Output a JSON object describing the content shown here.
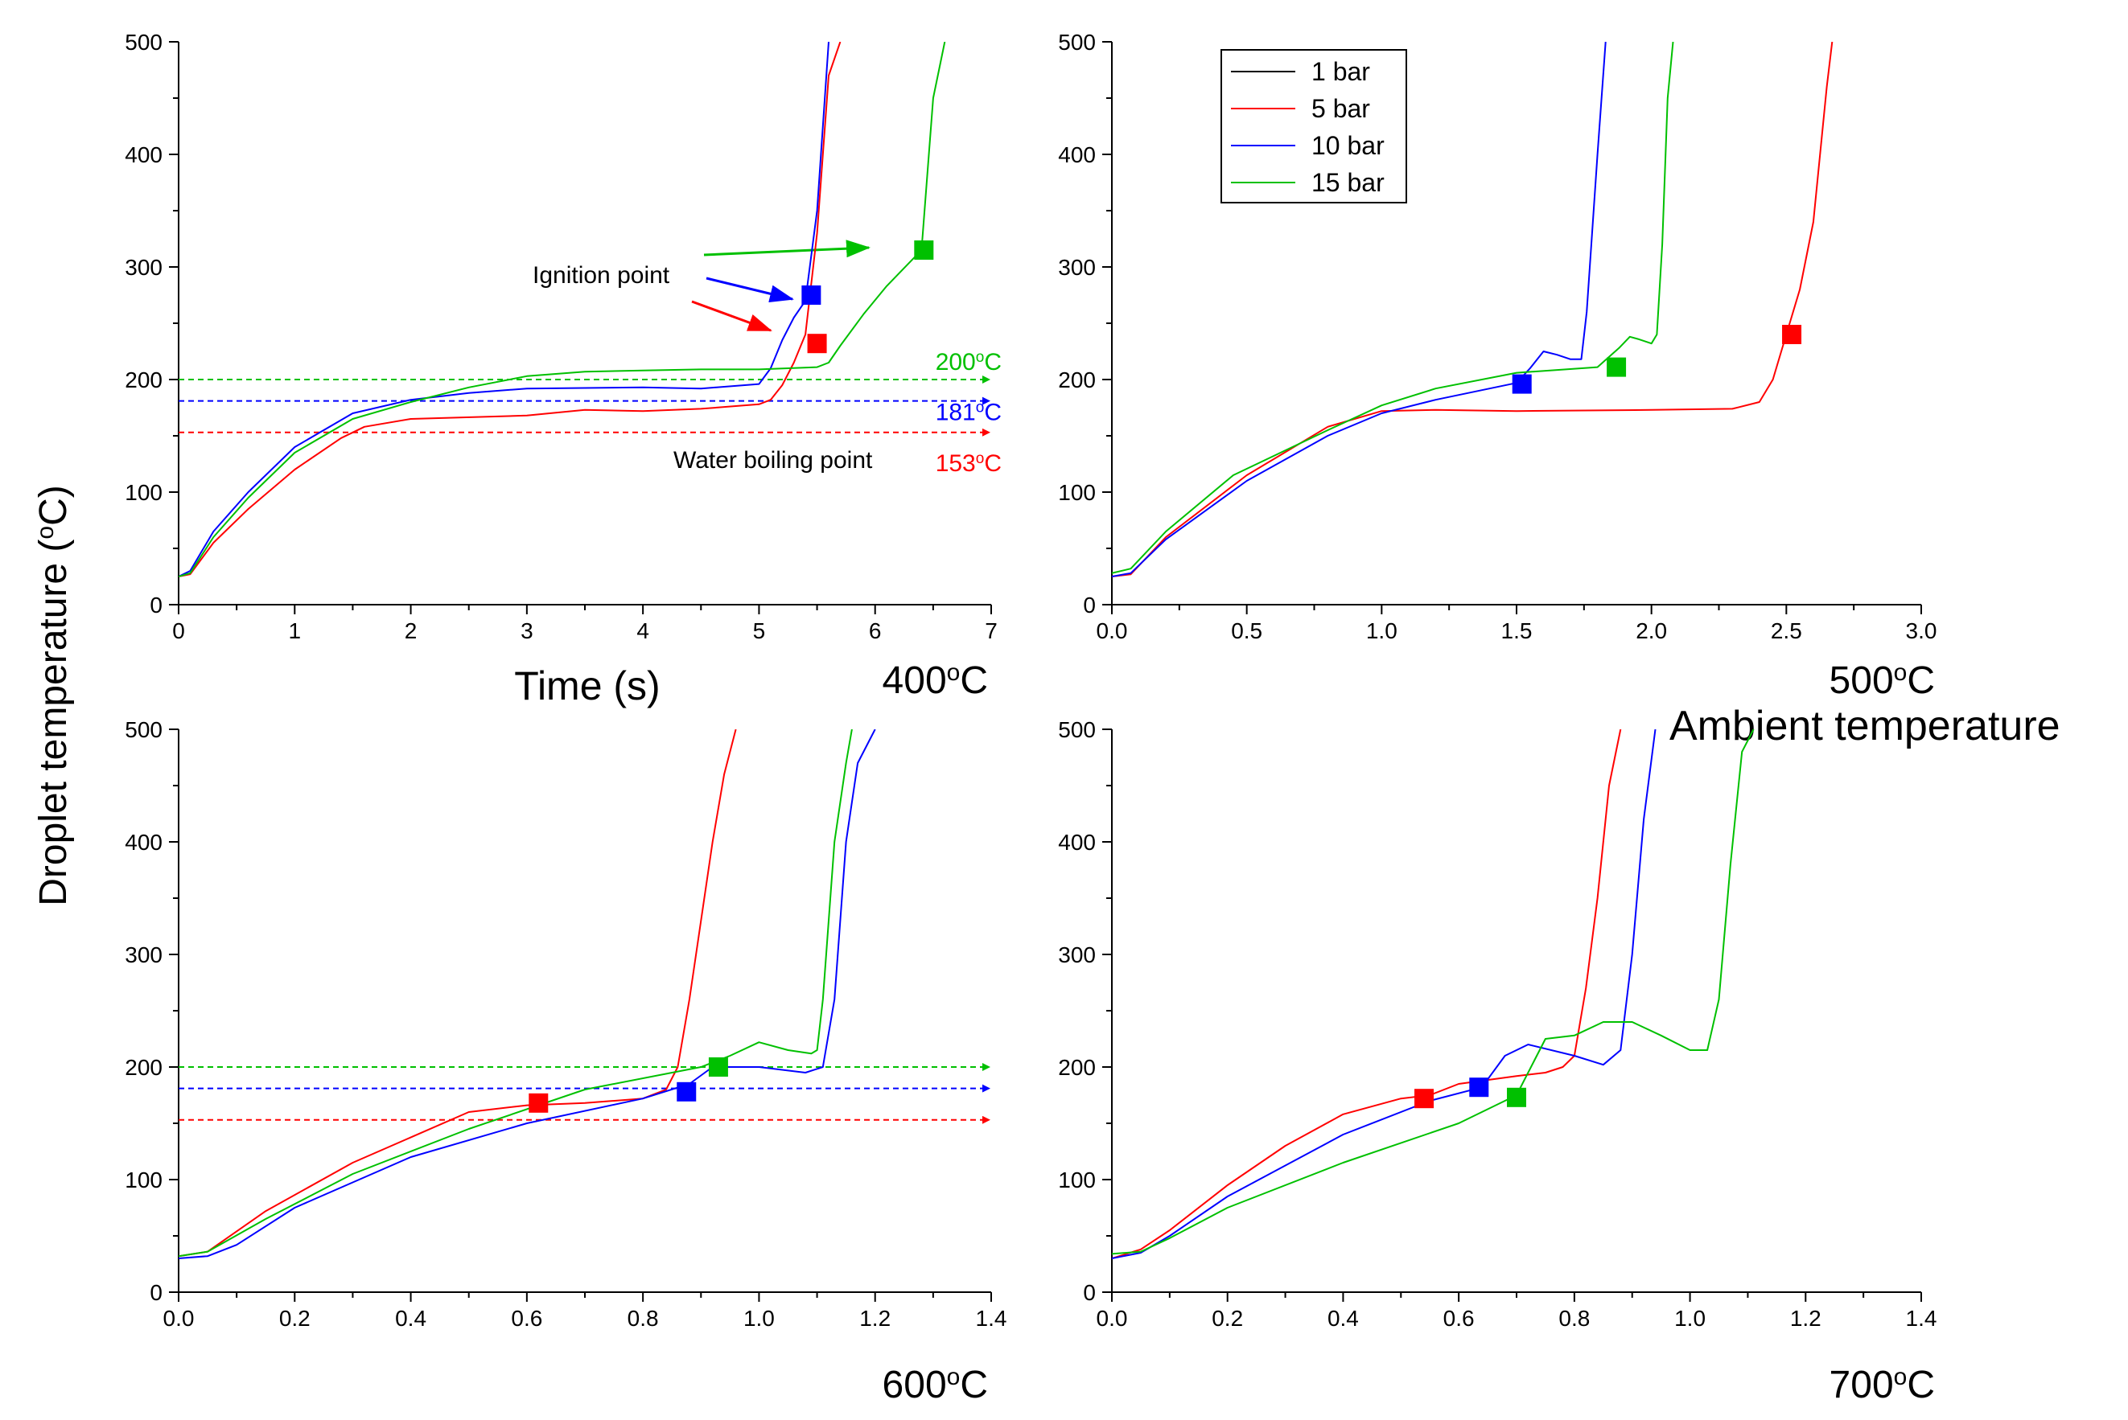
{
  "figure": {
    "ylabel": "Droplet temperature (°C)",
    "ylabel_main": "Droplet temperature (",
    "ylabel_sup": "o",
    "ylabel_tail": "C)",
    "xlabel": "Time (s)",
    "ambient_label": "Ambient temperature",
    "legend": [
      {
        "label": "1 bar",
        "color": "#000000"
      },
      {
        "label": "5 bar",
        "color": "#ff0000"
      },
      {
        "label": "10 bar",
        "color": "#0000ff"
      },
      {
        "label": "15 bar",
        "color": "#00c000"
      }
    ],
    "annotations": {
      "ignition": "Ignition point",
      "boiling": "Water boiling point"
    }
  },
  "chart_data": [
    {
      "type": "line",
      "panel_label": "400°C",
      "panel_num": "400",
      "xlim": [
        0,
        7
      ],
      "ylim": [
        0,
        500
      ],
      "xticks": [
        "0",
        "1",
        "2",
        "3",
        "4",
        "5",
        "6",
        "7"
      ],
      "yticks": [
        "0",
        "100",
        "200",
        "300",
        "400",
        "500"
      ],
      "series": [
        {
          "name": "5 bar",
          "color": "#ff0000",
          "x": [
            0,
            0.1,
            0.3,
            0.6,
            1.0,
            1.4,
            1.6,
            2.0,
            3.0,
            3.5,
            4.0,
            4.5,
            5.0,
            5.1,
            5.2,
            5.3,
            5.4,
            5.5,
            5.6,
            5.7
          ],
          "y": [
            25,
            27,
            55,
            85,
            120,
            148,
            158,
            165,
            168,
            173,
            172,
            174,
            178,
            182,
            195,
            215,
            240,
            330,
            470,
            500
          ]
        },
        {
          "name": "10 bar",
          "color": "#0000ff",
          "x": [
            0,
            0.1,
            0.3,
            0.6,
            1.0,
            1.5,
            2.0,
            2.5,
            3.0,
            4.0,
            4.5,
            5.0,
            5.1,
            5.2,
            5.3,
            5.4,
            5.5,
            5.6
          ],
          "y": [
            25,
            30,
            65,
            100,
            140,
            170,
            182,
            188,
            192,
            193,
            192,
            196,
            210,
            235,
            255,
            270,
            350,
            500
          ]
        },
        {
          "name": "15 bar",
          "color": "#00c000",
          "x": [
            0,
            0.1,
            0.3,
            0.6,
            1.0,
            1.5,
            2.0,
            2.5,
            3.0,
            3.5,
            4.0,
            4.5,
            5.0,
            5.5,
            5.6,
            5.7,
            5.9,
            6.1,
            6.4,
            6.5,
            6.6
          ],
          "y": [
            25,
            28,
            60,
            95,
            135,
            165,
            180,
            193,
            203,
            207,
            208,
            209,
            209,
            211,
            215,
            230,
            258,
            283,
            315,
            450,
            500
          ]
        }
      ],
      "ref_lines": [
        {
          "y": 200,
          "color": "#00c000",
          "label": "200°C",
          "num": "200"
        },
        {
          "y": 181,
          "color": "#0000ff",
          "label": "181°C",
          "num": "181"
        },
        {
          "y": 153,
          "color": "#ff0000",
          "label": "153°C",
          "num": "153"
        }
      ],
      "markers": [
        {
          "x": 5.45,
          "y": 275,
          "color": "#0000ff"
        },
        {
          "x": 5.5,
          "y": 232,
          "color": "#ff0000"
        },
        {
          "x": 6.42,
          "y": 315,
          "color": "#00c000"
        }
      ]
    },
    {
      "type": "line",
      "panel_label": "500°C",
      "panel_num": "500",
      "xlim": [
        0,
        3
      ],
      "ylim": [
        0,
        500
      ],
      "xticks": [
        "0.0",
        "0.5",
        "1.0",
        "1.5",
        "2.0",
        "2.5",
        "3.0"
      ],
      "yticks": [
        "0",
        "100",
        "200",
        "300",
        "400",
        "500"
      ],
      "series": [
        {
          "name": "5 bar",
          "color": "#ff0000",
          "x": [
            0,
            0.07,
            0.2,
            0.5,
            0.8,
            1.0,
            1.2,
            1.5,
            2.0,
            2.3,
            2.4,
            2.45,
            2.5,
            2.55,
            2.6,
            2.65,
            2.67
          ],
          "y": [
            25,
            27,
            60,
            115,
            158,
            172,
            173,
            172,
            173,
            174,
            180,
            200,
            240,
            280,
            340,
            460,
            500
          ]
        },
        {
          "name": "10 bar",
          "color": "#0000ff",
          "x": [
            0,
            0.07,
            0.2,
            0.5,
            0.8,
            1.0,
            1.2,
            1.4,
            1.5,
            1.55,
            1.6,
            1.65,
            1.7,
            1.74,
            1.76,
            1.8,
            1.83
          ],
          "y": [
            25,
            28,
            58,
            110,
            150,
            170,
            182,
            192,
            197,
            210,
            225,
            222,
            218,
            218,
            260,
            400,
            500
          ]
        },
        {
          "name": "15 bar",
          "color": "#00c000",
          "x": [
            0,
            0.07,
            0.2,
            0.45,
            0.8,
            1.0,
            1.2,
            1.5,
            1.8,
            1.88,
            1.92,
            1.95,
            2.0,
            2.02,
            2.04,
            2.06,
            2.08
          ],
          "y": [
            28,
            32,
            65,
            115,
            155,
            177,
            192,
            206,
            211,
            228,
            238,
            236,
            232,
            240,
            320,
            450,
            500
          ]
        }
      ],
      "ref_lines": [],
      "markers": [
        {
          "x": 1.52,
          "y": 196,
          "color": "#0000ff"
        },
        {
          "x": 1.87,
          "y": 211,
          "color": "#00c000"
        },
        {
          "x": 2.52,
          "y": 240,
          "color": "#ff0000"
        }
      ]
    },
    {
      "type": "line",
      "panel_label": "600°C",
      "panel_num": "600",
      "xlim": [
        0,
        1.4
      ],
      "ylim": [
        0,
        500
      ],
      "xticks": [
        "0.0",
        "0.2",
        "0.4",
        "0.6",
        "0.8",
        "1.0",
        "1.2",
        "1.4"
      ],
      "yticks": [
        "0",
        "100",
        "200",
        "300",
        "400",
        "500"
      ],
      "series": [
        {
          "name": "5 bar",
          "color": "#ff0000",
          "x": [
            0,
            0.05,
            0.15,
            0.3,
            0.5,
            0.6,
            0.7,
            0.8,
            0.84,
            0.86,
            0.88,
            0.9,
            0.92,
            0.94,
            0.96
          ],
          "y": [
            32,
            36,
            72,
            115,
            160,
            166,
            168,
            172,
            180,
            200,
            260,
            330,
            400,
            460,
            500
          ]
        },
        {
          "name": "10 bar",
          "color": "#0000ff",
          "x": [
            0,
            0.05,
            0.1,
            0.2,
            0.4,
            0.6,
            0.8,
            0.88,
            0.92,
            1.0,
            1.08,
            1.11,
            1.13,
            1.15,
            1.17,
            1.2
          ],
          "y": [
            30,
            32,
            42,
            75,
            120,
            150,
            172,
            185,
            200,
            200,
            195,
            200,
            260,
            400,
            470,
            500
          ]
        },
        {
          "name": "15 bar",
          "color": "#00c000",
          "x": [
            0,
            0.05,
            0.15,
            0.3,
            0.5,
            0.7,
            0.9,
            0.95,
            1.0,
            1.05,
            1.09,
            1.1,
            1.11,
            1.13,
            1.15,
            1.16
          ],
          "y": [
            32,
            36,
            65,
            105,
            145,
            180,
            200,
            210,
            222,
            215,
            212,
            215,
            260,
            400,
            470,
            500
          ]
        }
      ],
      "ref_lines": [
        {
          "y": 200,
          "color": "#00c000",
          "label": "",
          "num": ""
        },
        {
          "y": 181,
          "color": "#0000ff",
          "label": "",
          "num": ""
        },
        {
          "y": 153,
          "color": "#ff0000",
          "label": "",
          "num": ""
        }
      ],
      "markers": [
        {
          "x": 0.62,
          "y": 168,
          "color": "#ff0000"
        },
        {
          "x": 0.875,
          "y": 178,
          "color": "#0000ff"
        },
        {
          "x": 0.93,
          "y": 200,
          "color": "#00c000"
        }
      ]
    },
    {
      "type": "line",
      "panel_label": "700°C",
      "panel_num": "700",
      "xlim": [
        0,
        1.4
      ],
      "ylim": [
        0,
        500
      ],
      "xticks": [
        "0.0",
        "0.2",
        "0.4",
        "0.6",
        "0.8",
        "1.0",
        "1.2",
        "1.4"
      ],
      "yticks": [
        "0",
        "100",
        "200",
        "300",
        "400",
        "500"
      ],
      "series": [
        {
          "name": "5 bar",
          "color": "#ff0000",
          "x": [
            0,
            0.05,
            0.1,
            0.2,
            0.3,
            0.4,
            0.5,
            0.55,
            0.6,
            0.7,
            0.75,
            0.78,
            0.8,
            0.82,
            0.84,
            0.86,
            0.88
          ],
          "y": [
            30,
            38,
            55,
            95,
            130,
            158,
            172,
            175,
            185,
            192,
            195,
            200,
            210,
            270,
            350,
            450,
            500
          ]
        },
        {
          "name": "10 bar",
          "color": "#0000ff",
          "x": [
            0,
            0.05,
            0.1,
            0.2,
            0.4,
            0.55,
            0.64,
            0.68,
            0.72,
            0.8,
            0.85,
            0.88,
            0.9,
            0.92,
            0.94
          ],
          "y": [
            30,
            35,
            50,
            85,
            140,
            170,
            182,
            210,
            220,
            210,
            202,
            215,
            300,
            420,
            500
          ]
        },
        {
          "name": "15 bar",
          "color": "#00c000",
          "x": [
            0,
            0.05,
            0.1,
            0.2,
            0.4,
            0.6,
            0.7,
            0.75,
            0.8,
            0.85,
            0.9,
            0.95,
            1.0,
            1.03,
            1.05,
            1.07,
            1.09,
            1.11
          ],
          "y": [
            34,
            36,
            48,
            75,
            115,
            150,
            175,
            225,
            228,
            240,
            240,
            228,
            215,
            215,
            260,
            380,
            480,
            500
          ]
        }
      ],
      "ref_lines": [],
      "markers": [
        {
          "x": 0.54,
          "y": 172,
          "color": "#ff0000"
        },
        {
          "x": 0.635,
          "y": 182,
          "color": "#0000ff"
        },
        {
          "x": 0.7,
          "y": 173,
          "color": "#00c000"
        }
      ]
    }
  ]
}
